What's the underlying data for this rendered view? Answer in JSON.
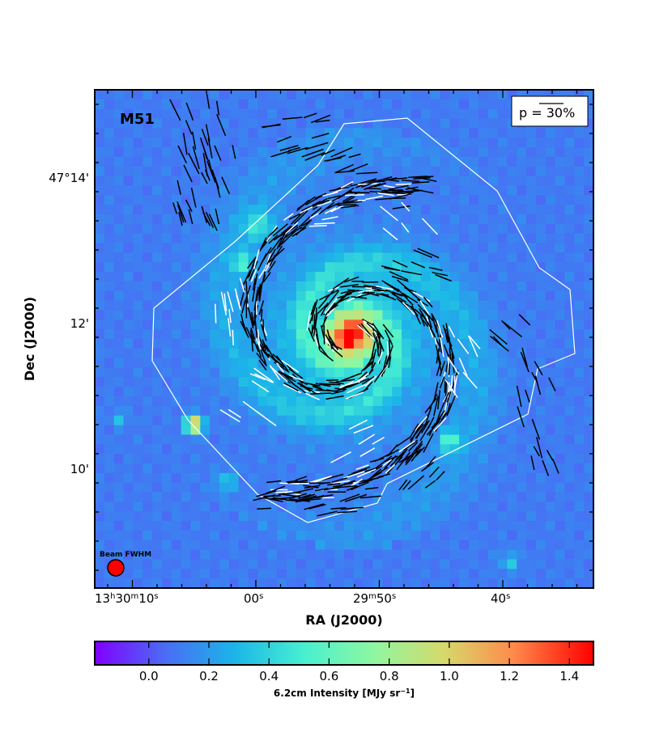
{
  "chart_data": {
    "type": "heatmap",
    "object_label": "M51",
    "xlabel": "RA (J2000)",
    "ylabel": "Dec (J2000)",
    "x_ticks": [
      {
        "h": "13",
        "m": "30",
        "s": "10"
      },
      {
        "s": "00"
      },
      {
        "m": "29",
        "s": "50"
      },
      {
        "s": "40"
      }
    ],
    "y_ticks": [
      "47°14'",
      "12'",
      "10'"
    ],
    "colorbar": {
      "label_main": "6.2cm Intensity [MJy sr",
      "label_exp": "−1",
      "label_close": "]",
      "range": [
        -0.18,
        1.48
      ],
      "ticks": [
        "0.0",
        "0.2",
        "0.4",
        "0.6",
        "0.8",
        "1.0",
        "1.2",
        "1.4"
      ],
      "tick_values": [
        0.0,
        0.2,
        0.4,
        0.6,
        0.8,
        1.0,
        1.2,
        1.4
      ],
      "colormap": "rainbow"
    },
    "polarization_scale_label_pre": "p = ",
    "polarization_scale_label_val": "30%",
    "beam_label": "Beam FWHM",
    "beam_color": "#ff0000",
    "contour_color": "#ffffff",
    "vector_colors": [
      "#000000",
      "#ffffff"
    ],
    "background_level": 0.1
  }
}
